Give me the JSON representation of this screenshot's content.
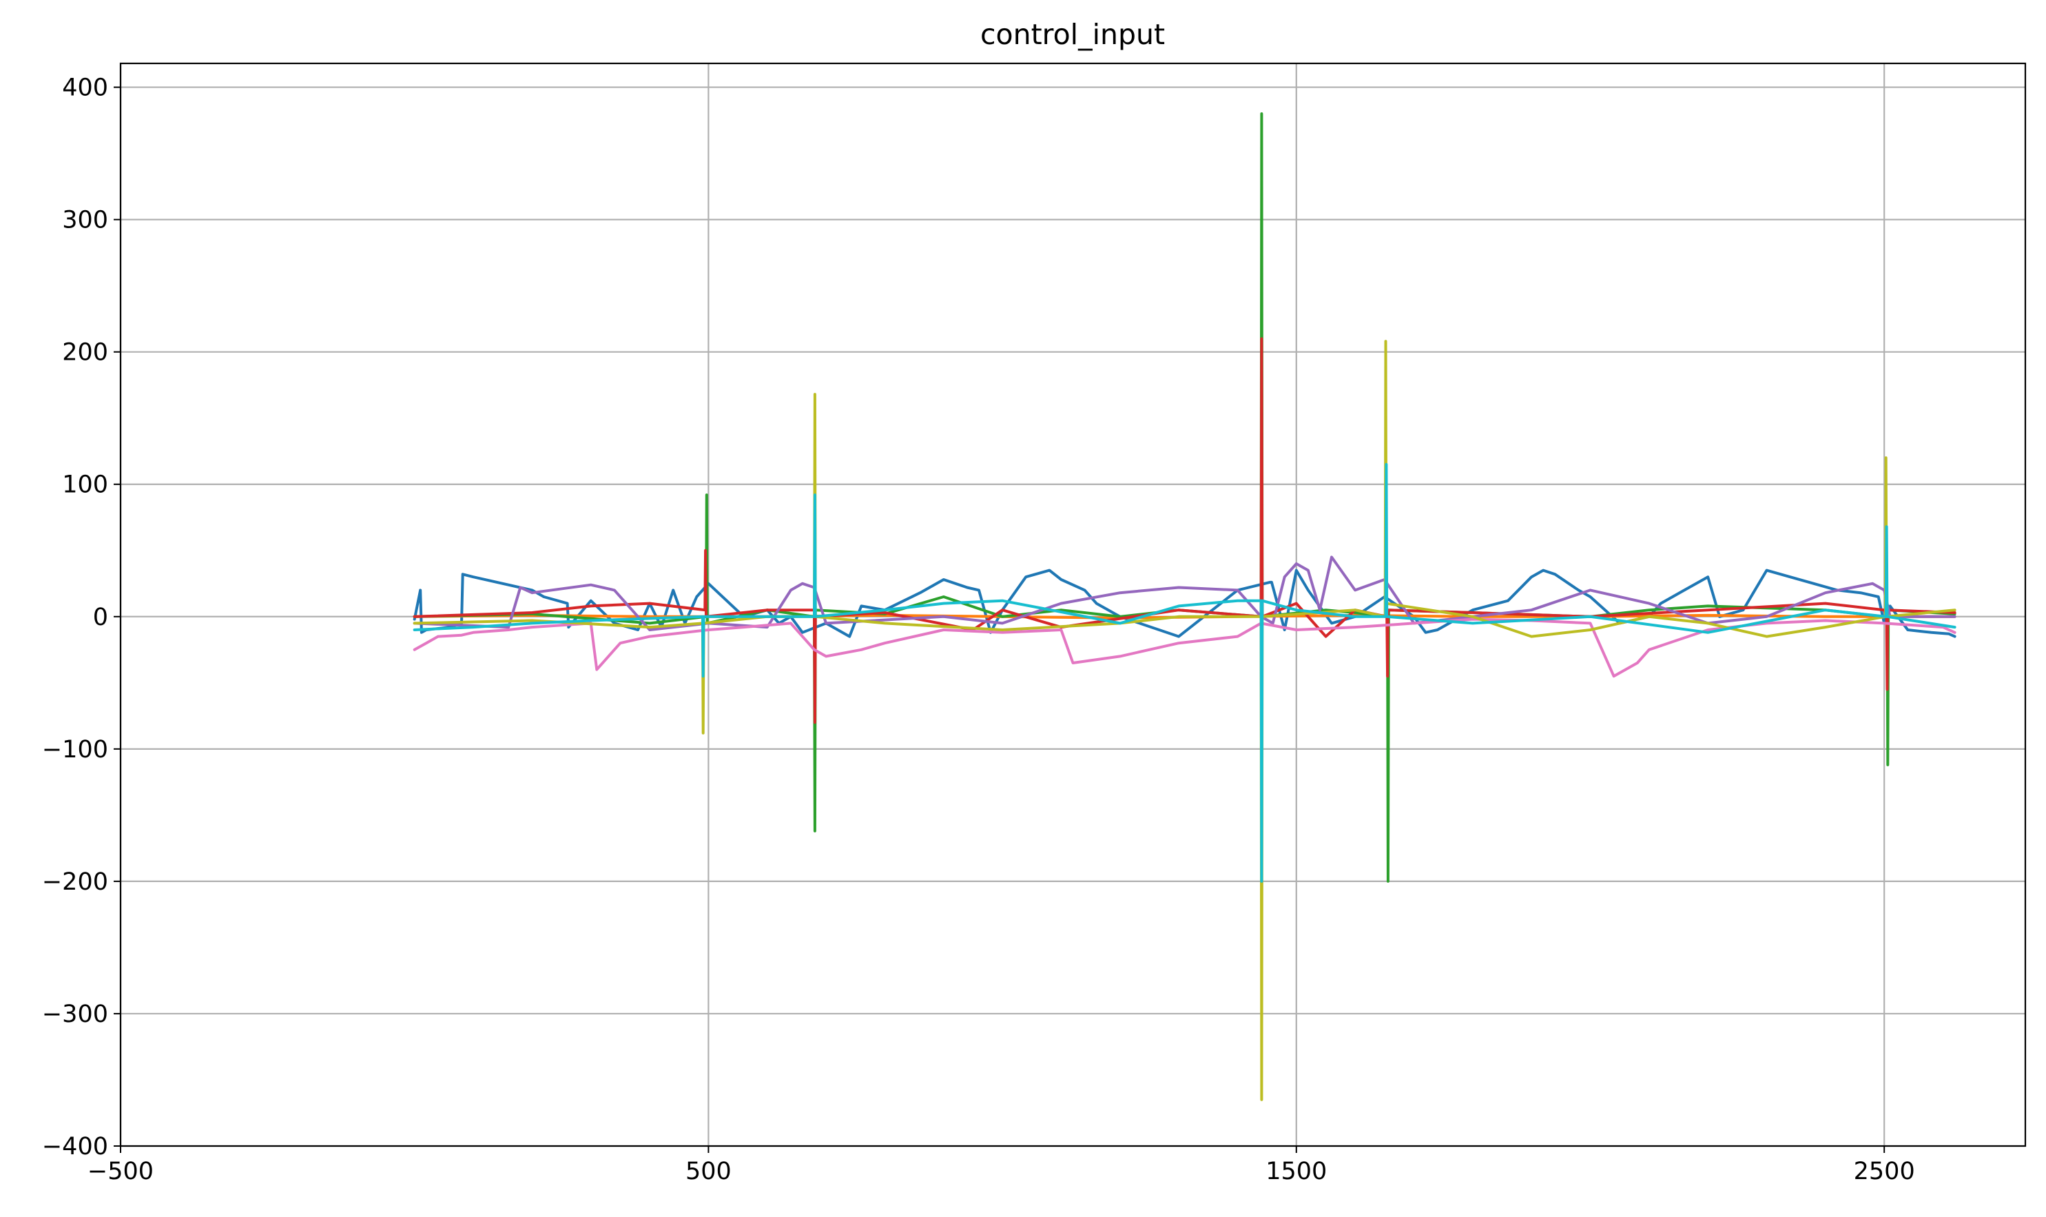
{
  "chart_data": {
    "type": "line",
    "title": "control_input",
    "xlabel": "",
    "ylabel": "",
    "xlim": [
      -500,
      2740
    ],
    "ylim": [
      -400,
      418
    ],
    "xticks": [
      -500,
      500,
      1500,
      2500
    ],
    "xtick_labels": [
      "−500",
      "500",
      "1500",
      "2500"
    ],
    "yticks": [
      -400,
      -300,
      -200,
      -100,
      0,
      100,
      200,
      300,
      400
    ],
    "ytick_labels": [
      "−400",
      "−300",
      "−200",
      "−100",
      "0",
      "100",
      "200",
      "300",
      "400"
    ],
    "grid": true,
    "legend": "none",
    "series": [
      {
        "color": "#1f77b4",
        "x": [
          0,
          10,
          12,
          20,
          60,
          80,
          82,
          100,
          200,
          220,
          260,
          262,
          300,
          340,
          380,
          400,
          420,
          440,
          460,
          480,
          500,
          560,
          600,
          620,
          640,
          660,
          700,
          740,
          760,
          800,
          860,
          900,
          940,
          960,
          980,
          1000,
          1040,
          1080,
          1100,
          1140,
          1160,
          1200,
          1300,
          1400,
          1455,
          1458,
          1480,
          1500,
          1520,
          1560,
          1600,
          1650,
          1700,
          1720,
          1740,
          1800,
          1860,
          1900,
          1920,
          1940,
          1980,
          2000,
          2050,
          2100,
          2120,
          2160,
          2200,
          2220,
          2260,
          2300,
          2340,
          2380,
          2420,
          2460,
          2490,
          2500,
          2510,
          2540,
          2580,
          2610,
          2620
        ],
        "y": [
          -2,
          20,
          -12,
          -10,
          -8,
          -5,
          32,
          30,
          20,
          15,
          10,
          -8,
          12,
          -5,
          -10,
          10,
          -8,
          20,
          -5,
          15,
          25,
          0,
          5,
          -5,
          0,
          -12,
          -5,
          -15,
          8,
          5,
          18,
          28,
          22,
          20,
          -12,
          5,
          30,
          35,
          28,
          20,
          10,
          0,
          -15,
          20,
          26,
          26,
          -10,
          35,
          20,
          -5,
          0,
          15,
          0,
          -12,
          -10,
          5,
          12,
          30,
          35,
          32,
          20,
          15,
          -5,
          0,
          10,
          20,
          30,
          0,
          5,
          35,
          30,
          25,
          20,
          18,
          15,
          -5,
          8,
          -10,
          -12,
          -13,
          -15
        ]
      },
      {
        "color": "#ff7f0e",
        "x": [
          0,
          200,
          400,
          600,
          800,
          1000,
          1200,
          1400,
          1600,
          1800,
          2000,
          2200,
          2400,
          2620
        ],
        "y": [
          0,
          1,
          0,
          0,
          1,
          0,
          -1,
          0,
          1,
          0,
          0,
          1,
          0,
          0
        ]
      },
      {
        "color": "#2ca02c",
        "x": [
          0,
          200,
          400,
          496,
          497,
          498,
          600,
          680,
          681,
          682,
          800,
          900,
          1000,
          1100,
          1200,
          1300,
          1440,
          1441,
          1442,
          1550,
          1600,
          1655,
          1656,
          1657,
          1800,
          2000,
          2100,
          2200,
          2400,
          2500,
          2505,
          2506,
          2507,
          2620
        ],
        "y": [
          0,
          2,
          -5,
          0,
          92,
          -5,
          5,
          0,
          -162,
          5,
          2,
          15,
          0,
          5,
          0,
          5,
          0,
          380,
          0,
          5,
          3,
          0,
          -200,
          5,
          3,
          0,
          5,
          8,
          5,
          0,
          0,
          -112,
          5,
          2
        ]
      },
      {
        "color": "#d62728",
        "x": [
          0,
          200,
          300,
          400,
          494,
          495,
          496,
          600,
          680,
          681,
          682,
          800,
          950,
          1000,
          1100,
          1300,
          1440,
          1441,
          1442,
          1500,
          1550,
          1600,
          1654,
          1655,
          1656,
          1800,
          2000,
          2200,
          2400,
          2500,
          2504,
          2505,
          2506,
          2620
        ],
        "y": [
          0,
          3,
          8,
          10,
          5,
          50,
          0,
          5,
          5,
          -80,
          0,
          3,
          -10,
          5,
          -8,
          5,
          0,
          210,
          0,
          10,
          -15,
          5,
          0,
          -45,
          5,
          3,
          0,
          5,
          10,
          5,
          0,
          -55,
          5,
          3
        ]
      },
      {
        "color": "#9467bd",
        "x": [
          0,
          160,
          180,
          200,
          300,
          340,
          400,
          500,
          600,
          640,
          660,
          680,
          700,
          900,
          1000,
          1100,
          1200,
          1300,
          1400,
          1440,
          1460,
          1480,
          1500,
          1520,
          1540,
          1560,
          1600,
          1650,
          1700,
          1800,
          1900,
          2000,
          2100,
          2200,
          2300,
          2400,
          2480,
          2500,
          2510,
          2620
        ],
        "y": [
          -5,
          -8,
          22,
          18,
          24,
          20,
          -10,
          -5,
          -8,
          20,
          25,
          22,
          -5,
          0,
          -5,
          10,
          18,
          22,
          20,
          0,
          -5,
          30,
          40,
          35,
          5,
          45,
          20,
          28,
          -5,
          0,
          5,
          20,
          10,
          -5,
          0,
          18,
          25,
          20,
          0,
          0
        ]
      },
      {
        "color": "#e377c2",
        "x": [
          0,
          20,
          40,
          80,
          100,
          160,
          200,
          300,
          310,
          330,
          350,
          400,
          500,
          560,
          640,
          680,
          700,
          760,
          800,
          900,
          1000,
          1100,
          1120,
          1200,
          1300,
          1400,
          1440,
          1500,
          1600,
          1700,
          1800,
          1900,
          2000,
          2040,
          2080,
          2100,
          2200,
          2300,
          2400,
          2500,
          2600,
          2620
        ],
        "y": [
          -25,
          -20,
          -15,
          -14,
          -12,
          -10,
          -8,
          -5,
          -40,
          -30,
          -20,
          -15,
          -10,
          -8,
          -5,
          -25,
          -30,
          -25,
          -20,
          -10,
          -12,
          -10,
          -35,
          -30,
          -20,
          -15,
          -5,
          -10,
          -8,
          -5,
          -2,
          -3,
          -5,
          -45,
          -35,
          -25,
          -10,
          -5,
          -3,
          -5,
          -8,
          -12
        ]
      },
      {
        "color": "#bcbd22",
        "x": [
          0,
          200,
          400,
          490,
          491,
          492,
          600,
          680,
          681,
          682,
          800,
          1000,
          1200,
          1300,
          1440,
          1441,
          1442,
          1600,
          1651,
          1652,
          1653,
          1800,
          1900,
          2000,
          2100,
          2200,
          2300,
          2400,
          2502,
          2503,
          2504,
          2620
        ],
        "y": [
          -5,
          -3,
          -8,
          -5,
          -88,
          -5,
          0,
          0,
          168,
          0,
          -5,
          -10,
          -5,
          0,
          0,
          -365,
          0,
          5,
          0,
          208,
          10,
          0,
          -15,
          -10,
          0,
          -5,
          -15,
          -8,
          0,
          120,
          0,
          5
        ]
      },
      {
        "color": "#17becf",
        "x": [
          0,
          100,
          200,
          300,
          490,
          491,
          492,
          600,
          680,
          681,
          682,
          800,
          900,
          1000,
          1200,
          1300,
          1400,
          1440,
          1441,
          1442,
          1500,
          1600,
          1652,
          1653,
          1654,
          1800,
          2000,
          2200,
          2400,
          2503,
          2504,
          2505,
          2620
        ],
        "y": [
          -10,
          -8,
          -5,
          -3,
          0,
          -45,
          0,
          0,
          0,
          92,
          0,
          5,
          10,
          12,
          -5,
          8,
          12,
          12,
          -200,
          12,
          5,
          0,
          0,
          115,
          0,
          -5,
          0,
          -12,
          5,
          0,
          68,
          0,
          -8
        ]
      }
    ]
  }
}
